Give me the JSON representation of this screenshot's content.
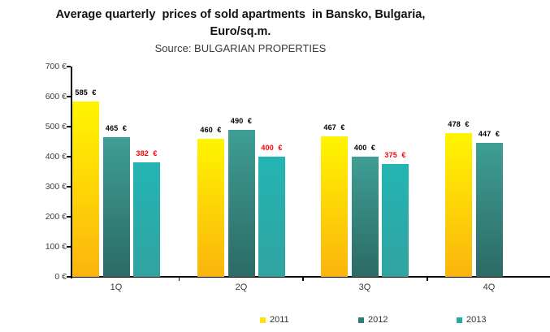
{
  "title": {
    "line1": "Average quarterly  prices of sold apartments  in Bansko, Bulgaria,",
    "line2": "Euro/sq.m.",
    "source": "Source: BULGARIAN PROPERTIES"
  },
  "chart_data": {
    "type": "bar",
    "title": "Average quarterly prices of sold apartments in Bansko, Bulgaria, Euro/sq.m.",
    "subtitle": "Source: BULGARIAN PROPERTIES",
    "categories": [
      "1Q",
      "2Q",
      "3Q",
      "4Q"
    ],
    "series": [
      {
        "name": "2011",
        "values": [
          585,
          460,
          467,
          478
        ],
        "labels": [
          "585  €",
          "460  €",
          "467  €",
          "478  €"
        ],
        "label_color": "#000000",
        "color_top": "#FFF500",
        "color_bottom": "#FBB40D",
        "legend_color": "#FFE30A"
      },
      {
        "name": "2012",
        "values": [
          465,
          490,
          400,
          447
        ],
        "labels": [
          "465  €",
          "490  €",
          "400  €",
          "447  €"
        ],
        "label_color": "#000000",
        "color_top": "#3E9E95",
        "color_bottom": "#2C6A65",
        "legend_color": "#2F7D76"
      },
      {
        "name": "2013",
        "values": [
          382,
          400,
          375,
          null
        ],
        "labels": [
          "382  €",
          "400  €",
          "375  €",
          null
        ],
        "label_color": "#FF0000",
        "color_top": "#23B5B3",
        "color_bottom": "#31A3A0",
        "legend_color": "#29A9A6"
      }
    ],
    "ylim": [
      0,
      700
    ],
    "ytick_step": 100,
    "yticks": [
      "700 €",
      "600 €",
      "500 €",
      "400 €",
      "300 €",
      "200 €",
      "100 €",
      "0 €"
    ],
    "xlabel": "",
    "ylabel": "",
    "grid": false,
    "legend_position": "bottom",
    "axis_color": "#000000"
  }
}
